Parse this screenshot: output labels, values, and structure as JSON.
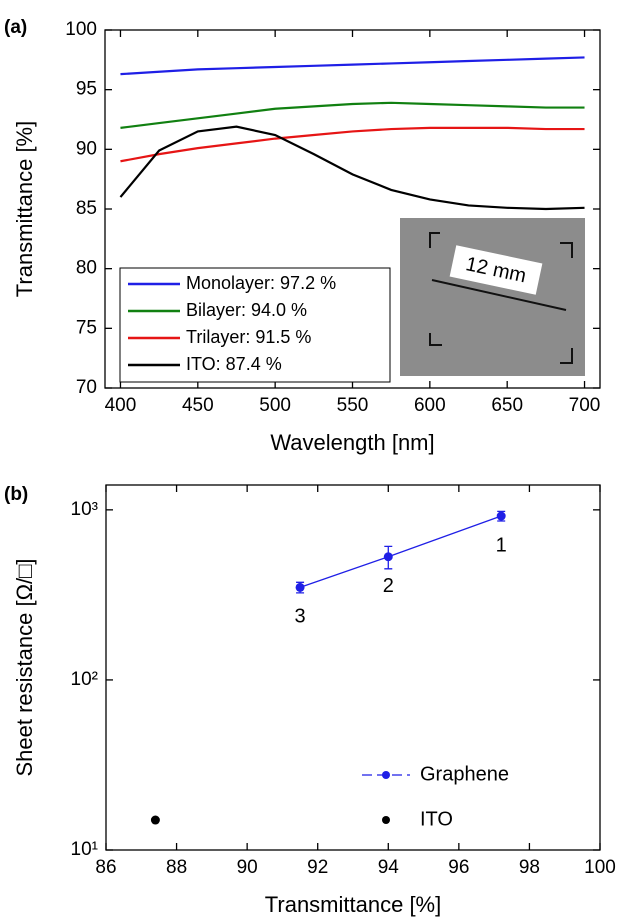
{
  "chart_data": [
    {
      "type": "line",
      "panel_label": "(a)",
      "x_label": "Wavelength [nm]",
      "y_label": "Transmittance [%]",
      "x": [
        400,
        425,
        450,
        475,
        500,
        525,
        550,
        575,
        600,
        625,
        650,
        675,
        700
      ],
      "series": [
        {
          "name": "Monolayer: 97.2 %",
          "color": "#1f1fe6",
          "values": [
            96.3,
            96.5,
            96.7,
            96.8,
            96.9,
            97.0,
            97.1,
            97.2,
            97.3,
            97.4,
            97.5,
            97.6,
            97.7
          ]
        },
        {
          "name": "Bilayer: 94.0 %",
          "color": "#118011",
          "values": [
            91.8,
            92.2,
            92.6,
            93.0,
            93.4,
            93.6,
            93.8,
            93.9,
            93.8,
            93.7,
            93.6,
            93.5,
            93.5
          ]
        },
        {
          "name": "Trilayer: 91.5 %",
          "color": "#e61515",
          "values": [
            89.0,
            89.6,
            90.1,
            90.5,
            90.9,
            91.2,
            91.5,
            91.7,
            91.8,
            91.8,
            91.8,
            91.7,
            91.7
          ]
        },
        {
          "name": "ITO: 87.4 %",
          "color": "#000000",
          "values": [
            86.0,
            89.9,
            91.5,
            91.9,
            91.2,
            89.6,
            87.9,
            86.6,
            85.8,
            85.3,
            85.1,
            85.0,
            85.1
          ]
        }
      ],
      "xlim": [
        390,
        710
      ],
      "xticks": [
        400,
        450,
        500,
        550,
        600,
        650,
        700
      ],
      "ylim": [
        70,
        100
      ],
      "yticks": [
        70,
        75,
        80,
        85,
        90,
        95,
        100
      ],
      "legend": "lower left",
      "inset_text": "12 mm"
    },
    {
      "type": "scatter",
      "panel_label": "(b)",
      "x_label": "Transmittance [%]",
      "y_label": "Sheet resistance [Ω/□]",
      "series": [
        {
          "name": "Graphene",
          "color": "#1f1fe6",
          "x": [
            91.5,
            94.0,
            97.2
          ],
          "values": [
            350,
            530,
            920
          ],
          "errors": [
            25,
            80,
            60
          ],
          "point_labels": [
            "3",
            "2",
            "1"
          ],
          "connected": true
        },
        {
          "name": "ITO",
          "color": "#000000",
          "x": [
            87.4
          ],
          "values": [
            15
          ],
          "connected": false
        }
      ],
      "xlim": [
        86,
        100
      ],
      "xticks": [
        86,
        88,
        90,
        92,
        94,
        96,
        98,
        100
      ],
      "ylim": [
        10,
        1400
      ],
      "log_y": true,
      "yticks": [
        {
          "value": 10,
          "label": "10¹"
        },
        {
          "value": 100,
          "label": "10²"
        },
        {
          "value": 1000,
          "label": "10³"
        }
      ],
      "legend": "lower right"
    }
  ]
}
